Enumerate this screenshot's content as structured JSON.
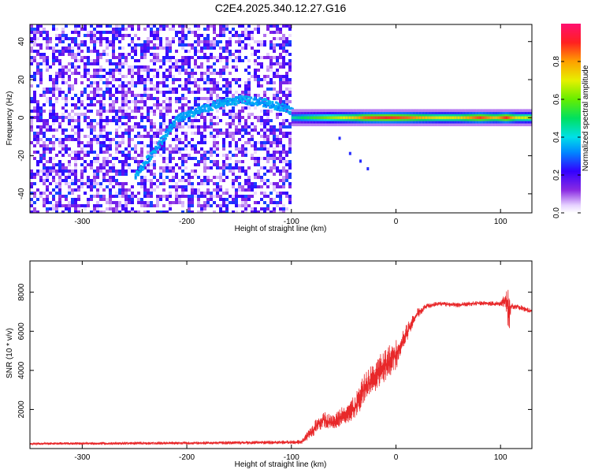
{
  "title": "C2E4.2025.340.12.27.G16",
  "chart_data": [
    {
      "type": "heatmap",
      "title": "C2E4.2025.340.12.27.G16",
      "xlabel": "Height of straight line (km)",
      "ylabel": "Frequency (Hz)",
      "xlim": [
        -350,
        130
      ],
      "ylim": [
        -50,
        49
      ],
      "x_ticks": [
        -300,
        -200,
        -100,
        0,
        100
      ],
      "y_ticks": [
        -40,
        -20,
        0,
        20,
        40
      ],
      "grid": false,
      "colorbar": {
        "label": "Normalized spectral amplitude",
        "range": [
          0.0,
          1.0
        ],
        "ticks": [
          0.0,
          0.2,
          0.4,
          0.6,
          0.8
        ],
        "tick_labels": [
          "0.0",
          "0.2",
          "0.4",
          "0.6",
          "0.8"
        ]
      },
      "features": {
        "noise_region_x": [
          -350,
          -100
        ],
        "noise_amplitude": 0.25,
        "arc_curve": [
          {
            "x": -250,
            "y": -30
          },
          {
            "x": -230,
            "y": -15
          },
          {
            "x": -210,
            "y": 0
          },
          {
            "x": -190,
            "y": 4
          },
          {
            "x": -170,
            "y": 8
          },
          {
            "x": -150,
            "y": 10
          },
          {
            "x": -130,
            "y": 9
          },
          {
            "x": -110,
            "y": 6
          },
          {
            "x": -100,
            "y": 4
          }
        ],
        "arc_amplitude": 0.32,
        "carrier_band": {
          "x_range": [
            -100,
            130
          ],
          "center_y": 0,
          "half_width": 1.5
        },
        "carrier_amplitude": [
          {
            "x": -100,
            "v": 0.45
          },
          {
            "x": -80,
            "v": 0.55
          },
          {
            "x": -70,
            "v": 0.6
          },
          {
            "x": -50,
            "v": 0.7
          },
          {
            "x": -40,
            "v": 0.75
          },
          {
            "x": -30,
            "v": 0.85
          },
          {
            "x": -10,
            "v": 0.9
          },
          {
            "x": 10,
            "v": 0.85
          },
          {
            "x": 40,
            "v": 0.7
          },
          {
            "x": 60,
            "v": 0.72
          },
          {
            "x": 80,
            "v": 0.88
          },
          {
            "x": 95,
            "v": 0.75
          },
          {
            "x": 105,
            "v": 0.9
          },
          {
            "x": 115,
            "v": 0.7
          },
          {
            "x": 130,
            "v": 0.68
          }
        ],
        "tail_points": [
          {
            "x": -55,
            "y": -10
          },
          {
            "x": -45,
            "y": -18
          },
          {
            "x": -35,
            "y": -22
          },
          {
            "x": -28,
            "y": -26
          }
        ]
      }
    },
    {
      "type": "line",
      "xlabel": "Height of straight line (km)",
      "ylabel": "SNR (10 * v/v)",
      "xlim": [
        -350,
        130
      ],
      "ylim": [
        0,
        9600
      ],
      "x_ticks": [
        -300,
        -200,
        -100,
        0,
        100
      ],
      "y_ticks": [
        2000,
        4000,
        6000,
        8000
      ],
      "grid": false,
      "series_color": "#e8282a",
      "series": [
        {
          "x": [
            -350,
            -300,
            -250,
            -200,
            -150,
            -100,
            -90,
            -80,
            -70,
            -60,
            -50,
            -40,
            -30,
            -20,
            -10,
            0,
            10,
            20,
            30,
            40,
            60,
            80,
            100,
            105,
            108,
            110,
            120,
            130
          ],
          "y": [
            250,
            260,
            270,
            280,
            300,
            320,
            330,
            900,
            1500,
            1300,
            1800,
            2000,
            3100,
            3700,
            4300,
            4800,
            5900,
            6900,
            7300,
            7400,
            7350,
            7450,
            7400,
            7600,
            7000,
            7300,
            7200,
            7000
          ],
          "spread": [
            120,
            140,
            160,
            160,
            180,
            200,
            220,
            700,
            900,
            800,
            1100,
            1300,
            1500,
            1600,
            1700,
            1600,
            900,
            500,
            300,
            250,
            250,
            250,
            250,
            800,
            2500,
            300,
            250,
            250
          ]
        }
      ]
    }
  ]
}
